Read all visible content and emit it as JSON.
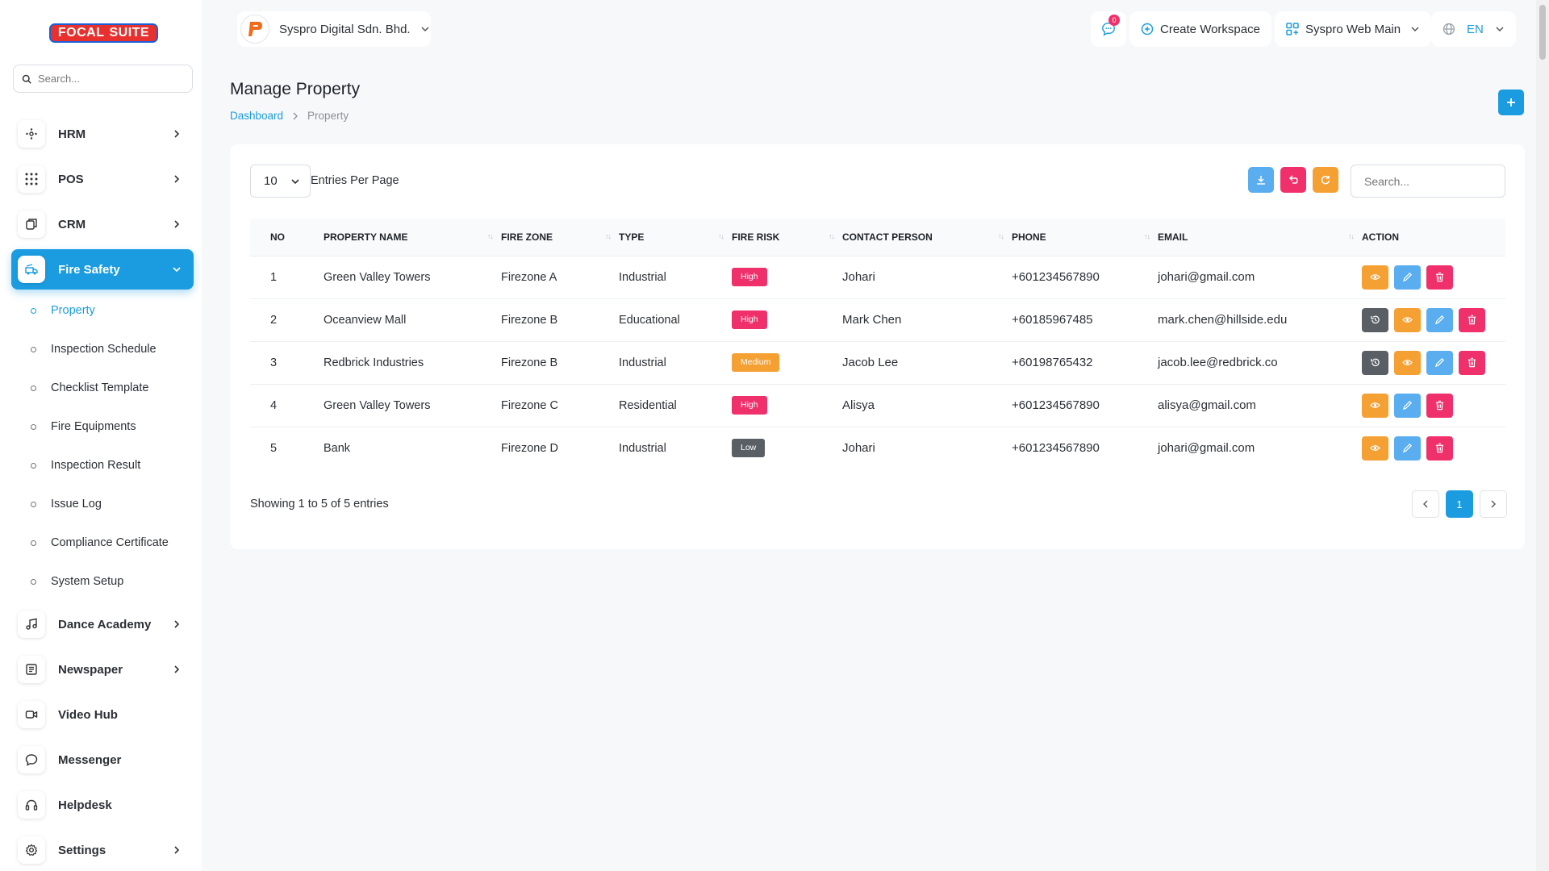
{
  "brand": {
    "part1": "FOCAL",
    "part2": "SUITE"
  },
  "sidebar": {
    "search_placeholder": "Search...",
    "items": [
      {
        "label": "HRM",
        "icon": "hrm-icon",
        "has_chevron": true
      },
      {
        "label": "POS",
        "icon": "grid-icon",
        "has_chevron": true
      },
      {
        "label": "CRM",
        "icon": "crm-icon",
        "has_chevron": true
      },
      {
        "label": "Fire Safety",
        "icon": "fire-truck-icon",
        "has_chevron": true,
        "active": true
      },
      {
        "label": "Dance Academy",
        "icon": "music-icon",
        "has_chevron": true
      },
      {
        "label": "Newspaper",
        "icon": "newspaper-icon",
        "has_chevron": true
      },
      {
        "label": "Video Hub",
        "icon": "video-icon",
        "has_chevron": false
      },
      {
        "label": "Messenger",
        "icon": "chat-icon",
        "has_chevron": false
      },
      {
        "label": "Helpdesk",
        "icon": "headset-icon",
        "has_chevron": false
      },
      {
        "label": "Settings",
        "icon": "gear-icon",
        "has_chevron": true
      }
    ],
    "subitems": [
      {
        "label": "Property",
        "active": true
      },
      {
        "label": "Inspection Schedule"
      },
      {
        "label": "Checklist Template"
      },
      {
        "label": "Fire Equipments"
      },
      {
        "label": "Inspection Result"
      },
      {
        "label": "Issue Log"
      },
      {
        "label": "Compliance Certificate"
      },
      {
        "label": "System Setup"
      }
    ]
  },
  "header": {
    "company": "Syspro Digital Sdn. Bhd.",
    "notification_count": "0",
    "create_workspace": "Create Workspace",
    "workspace": "Syspro Web Main",
    "language": "EN"
  },
  "page": {
    "title": "Manage Property",
    "breadcrumb": [
      "Dashboard",
      "Property"
    ]
  },
  "table_controls": {
    "per_page": "10",
    "per_page_label": "Entries Per Page",
    "search_placeholder": "Search..."
  },
  "table": {
    "columns": [
      "NO",
      "PROPERTY NAME",
      "FIRE ZONE",
      "TYPE",
      "FIRE RISK",
      "CONTACT PERSON",
      "PHONE",
      "EMAIL",
      "ACTION"
    ],
    "rows": [
      {
        "no": "1",
        "name": "Green Valley Towers",
        "zone": "Firezone A",
        "type": "Industrial",
        "risk": "High",
        "contact": "Johari",
        "phone": "+601234567890",
        "email": "johari@gmail.com",
        "history": false
      },
      {
        "no": "2",
        "name": "Oceanview Mall",
        "zone": "Firezone B",
        "type": "Educational",
        "risk": "High",
        "contact": "Mark Chen",
        "phone": "+60185967485",
        "email": "mark.chen@hillside.edu",
        "history": true
      },
      {
        "no": "3",
        "name": "Redbrick Industries",
        "zone": "Firezone B",
        "type": "Industrial",
        "risk": "Medium",
        "contact": "Jacob Lee",
        "phone": "+60198765432",
        "email": "jacob.lee@redbrick.co",
        "history": true
      },
      {
        "no": "4",
        "name": "Green Valley Towers",
        "zone": "Firezone C",
        "type": "Residential",
        "risk": "High",
        "contact": "Alisya",
        "phone": "+601234567890",
        "email": "alisya@gmail.com",
        "history": false
      },
      {
        "no": "5",
        "name": "Bank",
        "zone": "Firezone D",
        "type": "Industrial",
        "risk": "Low",
        "contact": "Johari",
        "phone": "+601234567890",
        "email": "johari@gmail.com",
        "history": false
      }
    ]
  },
  "footer": {
    "showing": "Showing 1 to 5 of 5 entries",
    "current_page": "1"
  },
  "colors": {
    "accent": "#1b9ce0",
    "high": "#f0306a",
    "medium": "#f5a033",
    "low": "#5a5f66",
    "view": "#f5a033",
    "edit": "#5aaef0",
    "delete": "#f0306a",
    "history": "#5a5f66"
  }
}
